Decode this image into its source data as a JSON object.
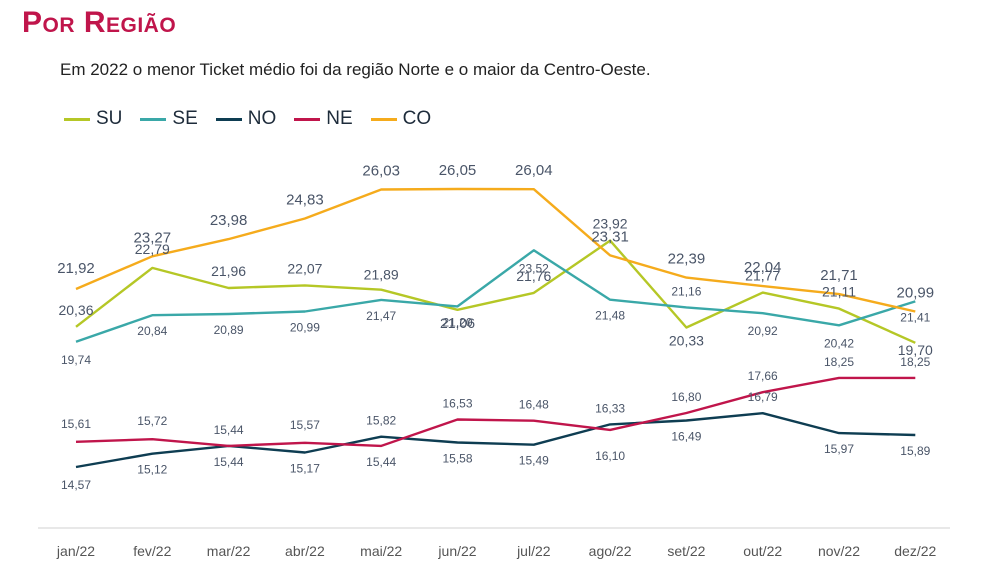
{
  "title": "Por Região",
  "subtitle": "Em 2022 o menor Ticket médio foi da região Norte e o maior da Centro-Oeste.",
  "chart_data": {
    "type": "line",
    "title": "Por Região",
    "subtitle": "Em 2022 o menor Ticket médio foi da região Norte e o maior da Centro-Oeste.",
    "xlabel": "",
    "ylabel": "",
    "categories": [
      "jan/22",
      "fev/22",
      "mar/22",
      "abr/22",
      "mai/22",
      "jun/22",
      "jul/22",
      "ago/22",
      "set/22",
      "out/22",
      "nov/22",
      "dez/22"
    ],
    "ylim": [
      13,
      27
    ],
    "grid": false,
    "legend_position": "top-left",
    "series": [
      {
        "name": "SU",
        "color": "#b5c726",
        "values": [
          20.36,
          22.79,
          21.96,
          22.07,
          21.89,
          21.06,
          21.76,
          23.92,
          20.33,
          21.77,
          21.11,
          19.7
        ],
        "labels": [
          "20,36",
          "22,79",
          "21,96",
          "22,07",
          "21,89",
          "21,06",
          "21,76",
          "23,92",
          "20,33",
          "21,77",
          "21,11",
          "19,70"
        ]
      },
      {
        "name": "SE",
        "color": "#3aa8a8",
        "values": [
          19.74,
          20.84,
          20.89,
          20.99,
          21.47,
          21.2,
          23.52,
          21.48,
          21.16,
          20.92,
          20.42,
          21.41
        ],
        "labels": [
          "19,74",
          "20,84",
          "20,89",
          "20,99",
          "21,47",
          "21,20",
          "23,52",
          "21,48",
          "21,16",
          "20,92",
          "20,42",
          "21,41"
        ]
      },
      {
        "name": "NO",
        "color": "#0e3d52",
        "values": [
          14.57,
          15.12,
          15.44,
          15.17,
          15.82,
          15.58,
          15.49,
          16.33,
          16.49,
          16.79,
          15.97,
          15.89
        ],
        "labels": [
          "14,57",
          "15,12",
          "15,44",
          "15,17",
          "15,82",
          "15,58",
          "15,49",
          "16,33",
          "16,49",
          "16,79",
          "15,97",
          "15,89"
        ]
      },
      {
        "name": "NE",
        "color": "#c0154b",
        "values": [
          15.61,
          15.72,
          15.44,
          15.57,
          15.44,
          16.53,
          16.48,
          16.1,
          16.8,
          17.66,
          18.25,
          18.25
        ],
        "labels": [
          "15,61",
          "15,72",
          "15,44",
          "15,57",
          "15,44",
          "16,53",
          "16,48",
          "16,10",
          "16,80",
          "17,66",
          "18,25",
          "18,25"
        ]
      },
      {
        "name": "CO",
        "color": "#f5ab1c",
        "values": [
          21.92,
          23.27,
          23.98,
          24.83,
          26.03,
          26.05,
          26.04,
          23.31,
          22.39,
          22.04,
          21.71,
          20.99
        ],
        "labels": [
          "21,92",
          "23,27",
          "23,98",
          "24,83",
          "26,03",
          "26,05",
          "26,04",
          "23,31",
          "22,39",
          "22,04",
          "21,71",
          "20,99"
        ]
      }
    ]
  }
}
